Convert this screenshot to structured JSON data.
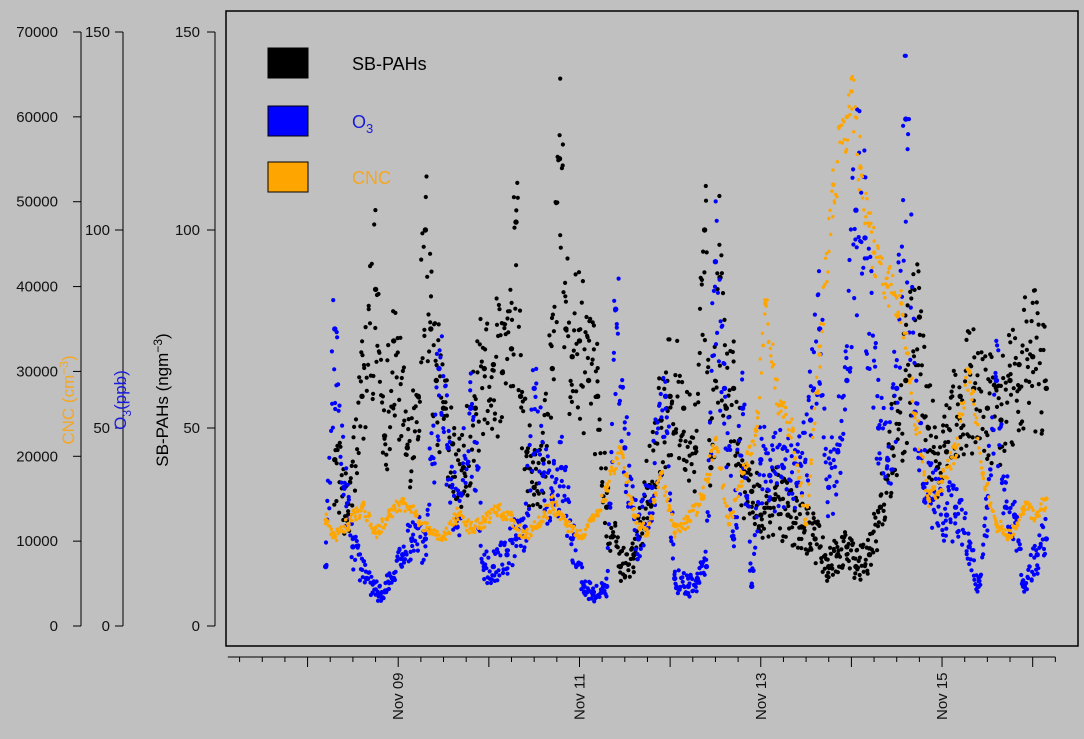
{
  "chart_data": {
    "type": "scatter",
    "title": "",
    "x_ticks": [
      "Nov 09",
      "Nov 11",
      "Nov 13",
      "Nov 15"
    ],
    "x_tick_days": [
      9,
      11,
      13,
      15
    ],
    "xlim": [
      7.1,
      16.5
    ],
    "axes": [
      {
        "key": "sbpah",
        "label": "SB-PAHs (ngm",
        "label_sup": "−3",
        "label_close": ")",
        "ticks": [
          0,
          50,
          100,
          150
        ],
        "ylim": [
          0,
          150
        ],
        "color": "#000000"
      },
      {
        "key": "o3",
        "label": "O",
        "label_sub": "3",
        "label_rest": "(ppb)",
        "ticks": [
          0,
          50,
          100,
          150
        ],
        "ylim": [
          0,
          150
        ],
        "color": "#1a1adc"
      },
      {
        "key": "cnc",
        "label": "CNC (cm",
        "label_sup": "−3",
        "label_close": ")",
        "ticks": [
          0,
          10000,
          20000,
          30000,
          40000,
          50000,
          60000,
          70000
        ],
        "ylim": [
          0,
          70000
        ],
        "color": "#f5a623"
      }
    ],
    "legend": {
      "position": "top-left",
      "items": [
        {
          "name": "SB-PAHs",
          "color": "#000000",
          "text_color": "#000000"
        },
        {
          "name": "O",
          "sub": "3",
          "color": "#0000ff",
          "text_color": "#1a1adc"
        },
        {
          "name": "CNC",
          "color": "#ffa500",
          "text_color": "#f5a623"
        }
      ]
    },
    "series": [
      {
        "name": "SB-PAHs",
        "axis": "sbpah",
        "color": "#000000",
        "x": [
          8.3,
          8.45,
          8.6,
          8.75,
          8.85,
          8.95,
          9.1,
          9.22,
          9.3,
          9.36,
          9.42,
          9.5,
          9.6,
          9.72,
          9.85,
          9.95,
          10.05,
          10.15,
          10.25,
          10.3,
          10.35,
          10.42,
          10.5,
          10.6,
          10.7,
          10.78,
          10.85,
          10.92,
          11.0,
          11.1,
          11.2,
          11.3,
          11.45,
          11.6,
          11.75,
          11.9,
          12.0,
          12.15,
          12.28,
          12.38,
          12.45,
          12.55,
          12.62,
          12.7,
          12.8,
          12.9,
          13.0,
          13.15,
          13.3,
          13.45,
          13.6,
          13.75,
          13.85,
          13.95,
          14.05,
          14.2,
          14.32,
          14.45,
          14.6,
          14.75,
          14.85,
          14.95,
          15.05,
          15.2,
          15.35,
          15.5,
          15.65,
          15.75,
          15.85,
          16.0,
          16.15
        ],
        "y": [
          42,
          28,
          58,
          85,
          48,
          72,
          45,
          58,
          100,
          75,
          62,
          55,
          46,
          40,
          55,
          65,
          66,
          64,
          70,
          102,
          58,
          44,
          35,
          42,
          65,
          118,
          75,
          68,
          72,
          62,
          58,
          30,
          15,
          18,
          35,
          52,
          58,
          55,
          45,
          100,
          40,
          88,
          55,
          60,
          38,
          34,
          28,
          32,
          28,
          25,
          22,
          15,
          18,
          20,
          15,
          18,
          30,
          45,
          62,
          78,
          50,
          40,
          44,
          58,
          60,
          55,
          52,
          62,
          66,
          68,
          60
        ]
      },
      {
        "name": "O3",
        "axis": "o3",
        "color": "#0000ff",
        "x": [
          8.2,
          8.3,
          8.4,
          8.5,
          8.65,
          8.8,
          8.95,
          9.05,
          9.15,
          9.3,
          9.45,
          9.55,
          9.65,
          9.8,
          9.95,
          10.05,
          10.2,
          10.3,
          10.4,
          10.5,
          10.6,
          10.7,
          10.8,
          10.92,
          11.05,
          11.15,
          11.3,
          11.4,
          11.5,
          11.65,
          11.8,
          11.95,
          12.05,
          12.2,
          12.3,
          12.4,
          12.5,
          12.6,
          12.7,
          12.8,
          12.9,
          13.0,
          13.1,
          13.25,
          13.4,
          13.55,
          13.65,
          13.75,
          13.85,
          13.95,
          14.05,
          14.15,
          14.3,
          14.4,
          14.5,
          14.6,
          14.7,
          14.8,
          14.9,
          15.05,
          15.15,
          15.3,
          15.4,
          15.5,
          15.6,
          15.7,
          15.8,
          15.9,
          16.05,
          16.15
        ],
        "y": [
          15,
          75,
          35,
          20,
          12,
          8,
          12,
          18,
          22,
          22,
          65,
          45,
          25,
          55,
          15,
          15,
          18,
          22,
          25,
          60,
          38,
          32,
          40,
          22,
          10,
          8,
          10,
          80,
          45,
          22,
          35,
          58,
          12,
          10,
          12,
          15,
          92,
          60,
          22,
          55,
          10,
          42,
          38,
          40,
          36,
          52,
          75,
          35,
          44,
          62,
          105,
          98,
          50,
          42,
          60,
          128,
          54,
          35,
          32,
          28,
          30,
          20,
          10,
          30,
          62,
          30,
          28,
          10,
          18,
          22
        ]
      },
      {
        "name": "CNC",
        "axis": "cnc",
        "color": "#ffa500",
        "x": [
          8.2,
          8.3,
          8.45,
          8.6,
          8.75,
          8.9,
          9.05,
          9.2,
          9.35,
          9.5,
          9.65,
          9.8,
          9.95,
          10.1,
          10.25,
          10.4,
          10.55,
          10.7,
          10.85,
          11.0,
          11.15,
          11.3,
          11.45,
          11.6,
          11.75,
          11.9,
          12.05,
          12.2,
          12.35,
          12.5,
          12.65,
          12.8,
          12.95,
          13.05,
          13.2,
          13.35,
          13.5,
          13.65,
          13.8,
          13.95,
          14.0,
          14.1,
          14.25,
          14.4,
          14.55,
          14.7,
          14.85,
          15.0,
          15.15,
          15.3,
          15.45,
          15.6,
          15.75,
          15.9,
          16.05,
          16.15
        ],
        "y": [
          12500,
          10500,
          12000,
          14000,
          11000,
          13000,
          14500,
          13000,
          11000,
          10500,
          13000,
          11500,
          12500,
          14000,
          12500,
          10500,
          12000,
          14500,
          12000,
          10500,
          12500,
          16000,
          21000,
          13000,
          11000,
          18000,
          11000,
          12500,
          15000,
          22000,
          12000,
          18000,
          23000,
          38000,
          26000,
          23000,
          12000,
          32000,
          52000,
          60000,
          63000,
          54000,
          44000,
          40000,
          38000,
          25000,
          15000,
          17000,
          21000,
          30000,
          18000,
          12000,
          10500,
          14000,
          13000,
          15000
        ]
      }
    ]
  }
}
